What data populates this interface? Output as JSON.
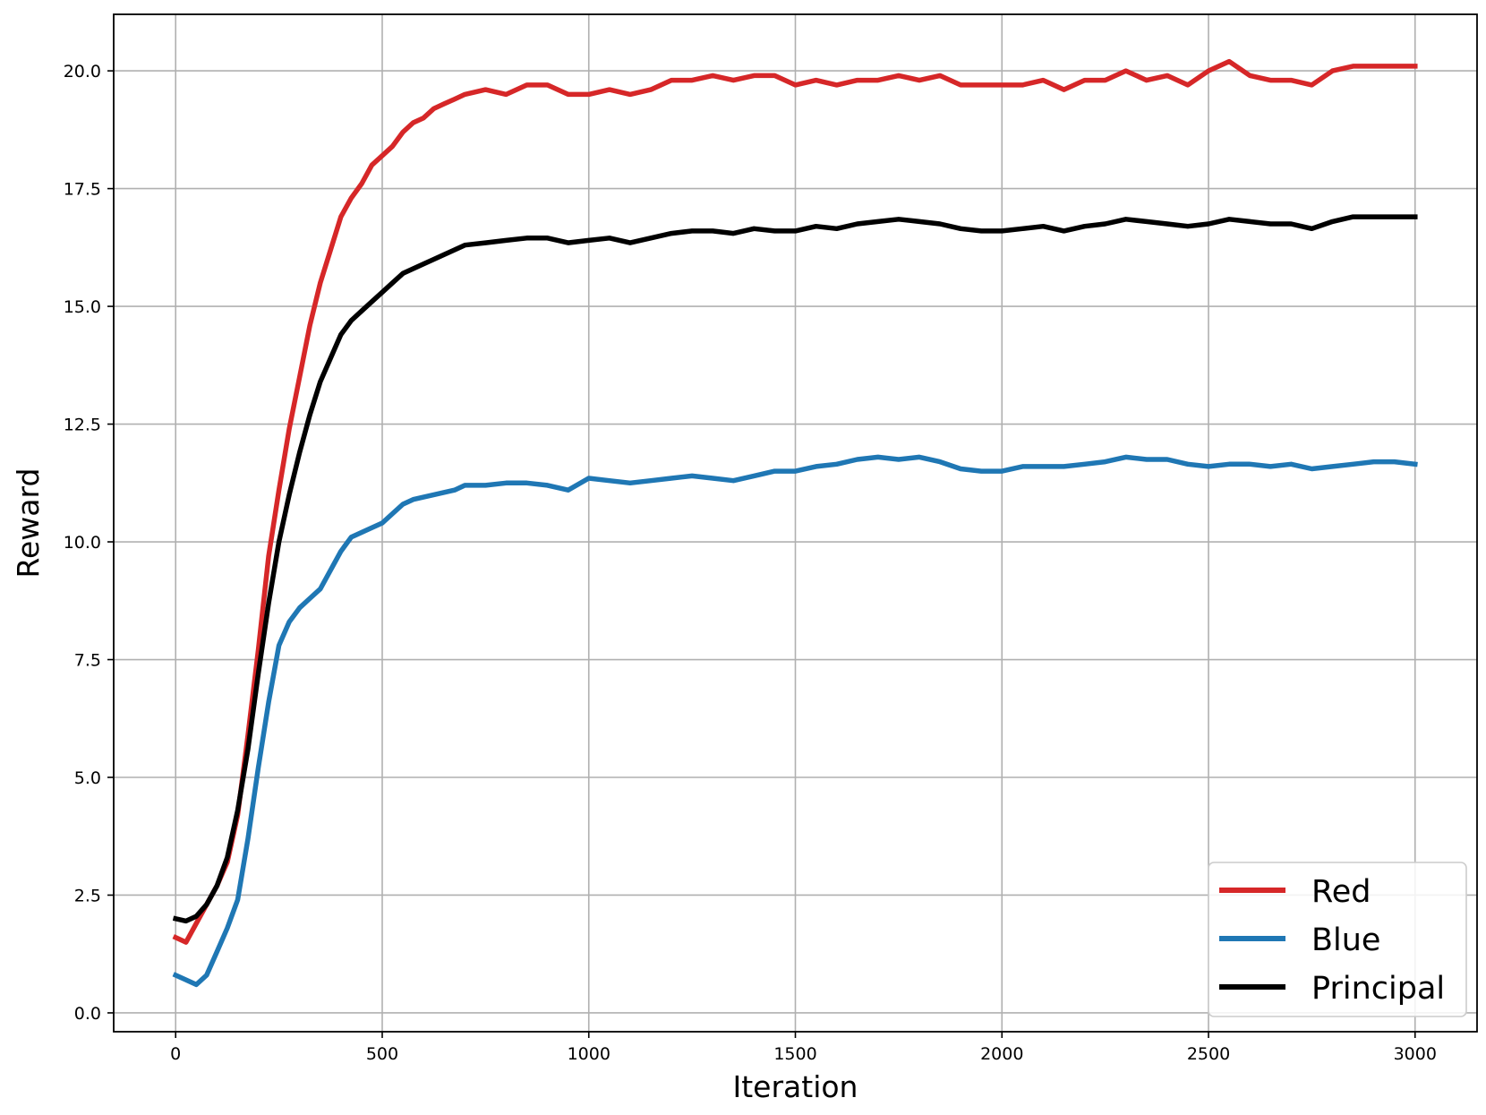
{
  "chart_data": {
    "type": "line",
    "title": "",
    "xlabel": "Iteration",
    "ylabel": "Reward",
    "xlim": [
      -150,
      3150
    ],
    "ylim": [
      -0.4,
      21.2
    ],
    "xticks": [
      0,
      500,
      1000,
      1500,
      2000,
      2500,
      3000
    ],
    "xtick_labels": [
      "0",
      "500",
      "1000",
      "1500",
      "2000",
      "2500",
      "3000"
    ],
    "yticks": [
      0.0,
      2.5,
      5.0,
      7.5,
      10.0,
      12.5,
      15.0,
      17.5,
      20.0
    ],
    "ytick_labels": [
      "0.0",
      "2.5",
      "5.0",
      "7.5",
      "10.0",
      "12.5",
      "15.0",
      "17.5",
      "20.0"
    ],
    "grid": true,
    "legend_position": "bottom-right",
    "series": [
      {
        "name": "Red",
        "color": "#d62728",
        "x": [
          0,
          25,
          50,
          75,
          100,
          125,
          150,
          175,
          200,
          225,
          250,
          275,
          300,
          325,
          350,
          375,
          400,
          425,
          450,
          475,
          500,
          525,
          550,
          575,
          600,
          625,
          650,
          675,
          700,
          750,
          800,
          850,
          900,
          950,
          1000,
          1050,
          1100,
          1150,
          1200,
          1250,
          1300,
          1350,
          1400,
          1450,
          1500,
          1550,
          1600,
          1650,
          1700,
          1750,
          1800,
          1850,
          1900,
          1950,
          2000,
          2050,
          2100,
          2150,
          2200,
          2250,
          2300,
          2350,
          2400,
          2450,
          2500,
          2550,
          2600,
          2650,
          2700,
          2750,
          2800,
          2850,
          2900,
          2950,
          3000
        ],
        "values": [
          1.6,
          1.5,
          1.9,
          2.3,
          2.7,
          3.2,
          4.2,
          5.9,
          7.7,
          9.7,
          11.1,
          12.4,
          13.5,
          14.6,
          15.5,
          16.2,
          16.9,
          17.3,
          17.6,
          18.0,
          18.2,
          18.4,
          18.7,
          18.9,
          19.0,
          19.2,
          19.3,
          19.4,
          19.5,
          19.6,
          19.5,
          19.7,
          19.7,
          19.5,
          19.5,
          19.6,
          19.5,
          19.6,
          19.8,
          19.8,
          19.9,
          19.8,
          19.9,
          19.9,
          19.7,
          19.8,
          19.7,
          19.8,
          19.8,
          19.9,
          19.8,
          19.9,
          19.7,
          19.7,
          19.7,
          19.7,
          19.8,
          19.6,
          19.8,
          19.8,
          20.0,
          19.8,
          19.9,
          19.7,
          20.0,
          20.2,
          19.9,
          19.8,
          19.8,
          19.7,
          20.0,
          20.1,
          20.1,
          20.1,
          20.1
        ]
      },
      {
        "name": "Blue",
        "color": "#1f77b4",
        "x": [
          0,
          25,
          50,
          75,
          100,
          125,
          150,
          175,
          200,
          225,
          250,
          275,
          300,
          325,
          350,
          375,
          400,
          425,
          450,
          475,
          500,
          525,
          550,
          575,
          600,
          625,
          650,
          675,
          700,
          750,
          800,
          850,
          900,
          950,
          1000,
          1050,
          1100,
          1150,
          1200,
          1250,
          1300,
          1350,
          1400,
          1450,
          1500,
          1550,
          1600,
          1650,
          1700,
          1750,
          1800,
          1850,
          1900,
          1950,
          2000,
          2050,
          2100,
          2150,
          2200,
          2250,
          2300,
          2350,
          2400,
          2450,
          2500,
          2550,
          2600,
          2650,
          2700,
          2750,
          2800,
          2850,
          2900,
          2950,
          3000
        ],
        "values": [
          0.8,
          0.7,
          0.6,
          0.8,
          1.3,
          1.8,
          2.4,
          3.7,
          5.2,
          6.6,
          7.8,
          8.3,
          8.6,
          8.8,
          9.0,
          9.4,
          9.8,
          10.1,
          10.2,
          10.3,
          10.4,
          10.6,
          10.8,
          10.9,
          10.95,
          11.0,
          11.05,
          11.1,
          11.2,
          11.2,
          11.25,
          11.25,
          11.2,
          11.1,
          11.35,
          11.3,
          11.25,
          11.3,
          11.35,
          11.4,
          11.35,
          11.3,
          11.4,
          11.5,
          11.5,
          11.6,
          11.65,
          11.75,
          11.8,
          11.75,
          11.8,
          11.7,
          11.55,
          11.5,
          11.5,
          11.6,
          11.6,
          11.6,
          11.65,
          11.7,
          11.8,
          11.75,
          11.75,
          11.65,
          11.6,
          11.65,
          11.65,
          11.6,
          11.65,
          11.55,
          11.6,
          11.65,
          11.7,
          11.7,
          11.65
        ]
      },
      {
        "name": "Principal",
        "color": "#000000",
        "x": [
          0,
          25,
          50,
          75,
          100,
          125,
          150,
          175,
          200,
          225,
          250,
          275,
          300,
          325,
          350,
          375,
          400,
          425,
          450,
          475,
          500,
          525,
          550,
          575,
          600,
          625,
          650,
          675,
          700,
          750,
          800,
          850,
          900,
          950,
          1000,
          1050,
          1100,
          1150,
          1200,
          1250,
          1300,
          1350,
          1400,
          1450,
          1500,
          1550,
          1600,
          1650,
          1700,
          1750,
          1800,
          1850,
          1900,
          1950,
          2000,
          2050,
          2100,
          2150,
          2200,
          2250,
          2300,
          2350,
          2400,
          2450,
          2500,
          2550,
          2600,
          2650,
          2700,
          2750,
          2800,
          2850,
          2900,
          2950,
          3000
        ],
        "values": [
          2.0,
          1.95,
          2.05,
          2.3,
          2.7,
          3.3,
          4.3,
          5.6,
          7.2,
          8.7,
          10.0,
          11.0,
          11.9,
          12.7,
          13.4,
          13.9,
          14.4,
          14.7,
          14.9,
          15.1,
          15.3,
          15.5,
          15.7,
          15.8,
          15.9,
          16.0,
          16.1,
          16.2,
          16.3,
          16.35,
          16.4,
          16.45,
          16.45,
          16.35,
          16.4,
          16.45,
          16.35,
          16.45,
          16.55,
          16.6,
          16.6,
          16.55,
          16.65,
          16.6,
          16.6,
          16.7,
          16.65,
          16.75,
          16.8,
          16.85,
          16.8,
          16.75,
          16.65,
          16.6,
          16.6,
          16.65,
          16.7,
          16.6,
          16.7,
          16.75,
          16.85,
          16.8,
          16.75,
          16.7,
          16.75,
          16.85,
          16.8,
          16.75,
          16.75,
          16.65,
          16.8,
          16.9,
          16.9,
          16.9,
          16.9
        ]
      }
    ]
  }
}
